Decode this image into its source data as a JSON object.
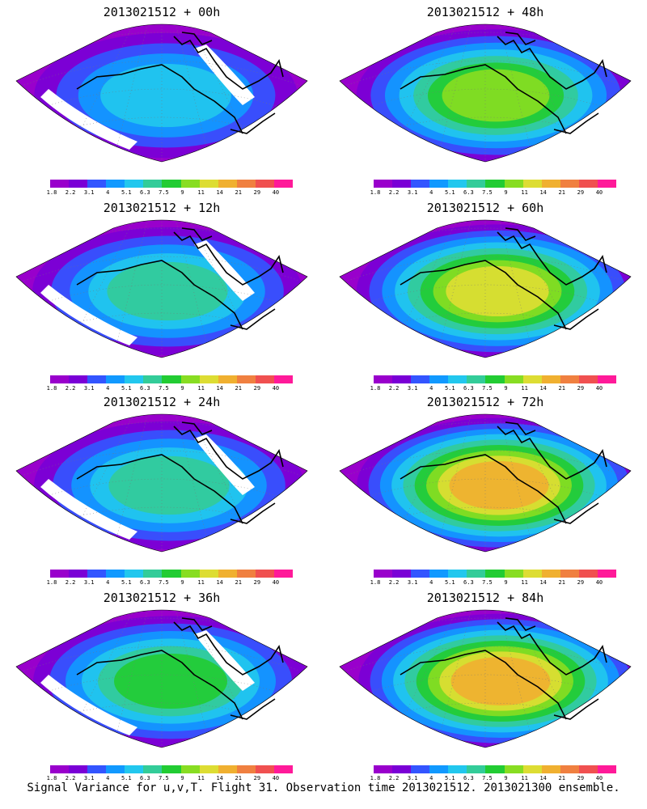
{
  "panels": [
    {
      "title": "2013021512 + 00h",
      "lead": "00h"
    },
    {
      "title": "2013021512 + 12h",
      "lead": "12h"
    },
    {
      "title": "2013021512 + 24h",
      "lead": "24h"
    },
    {
      "title": "2013021512 + 36h",
      "lead": "36h"
    },
    {
      "title": "2013021512 + 48h",
      "lead": "48h"
    },
    {
      "title": "2013021512 + 60h",
      "lead": "60h"
    },
    {
      "title": "2013021512 + 72h",
      "lead": "72h"
    },
    {
      "title": "2013021512 + 84h",
      "lead": "84h"
    }
  ],
  "colorbar": {
    "ticks": [
      "1.8",
      "2.2",
      "3.1",
      "4",
      "5.1",
      "6.3",
      "7.5",
      "9",
      "11",
      "14",
      "21",
      "29",
      "40"
    ],
    "colors": [
      "#9900cc",
      "#7a00d6",
      "#3355ff",
      "#1199ff",
      "#22c7ee",
      "#33cc99",
      "#22cc33",
      "#88dd22",
      "#dddd33",
      "#f0b030",
      "#f08040",
      "#f05050",
      "#ff1a99"
    ]
  },
  "footer": "Signal Variance for u,v,T. Flight 31. Observation time 2013021512. 2013021300 ensemble."
}
